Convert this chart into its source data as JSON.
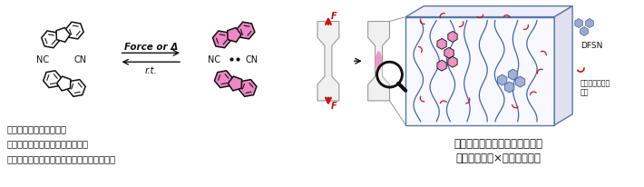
{
  "fig_width": 7.1,
  "fig_height": 2.06,
  "dpi": 100,
  "bg_color": "#ffffff",
  "pink_color": "#E878B8",
  "pink_fill": "#EE88C4",
  "dark_color": "#111111",
  "red_color": "#CC1111",
  "blue_color": "#5577AA",
  "blue_light": "#99AACC",
  "bullet_texts_left": [
    "・室温では安定な二量体",
    "・力により桃色のラジカルを発生",
    "・発生するラジカルは重合開始剤として機能"
  ],
  "arrow_label_top": "Force or Δ",
  "arrow_label_bottom": "r.t.",
  "label_NC": "NC",
  "label_CN": "CN",
  "text_right_line1": "色変化と架橋反応を同時に誘起",
  "text_right_line2": "ダメージ検知×自己高強度化",
  "label_DFSN": "DFSN",
  "label_vinyl": "ビニルモノマー",
  "label_vinyl2": "骨格",
  "label_F": "F"
}
